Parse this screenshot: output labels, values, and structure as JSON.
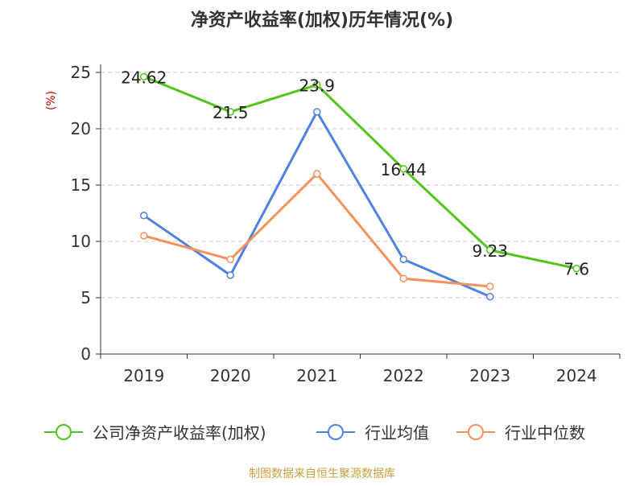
{
  "title": "净资产收益率(加权)历年情况(%)",
  "source": "制图数据来自恒生聚源数据库",
  "colors": {
    "company": "#52c41a",
    "avg": "#4f81e0",
    "median": "#f4925e",
    "grid": "#c8c8c8",
    "axis": "#333333",
    "unit": "#cc0000",
    "source": "#c8a040"
  },
  "chart_data": {
    "type": "line",
    "title": "净资产收益率(加权)历年情况(%)",
    "ylabel": "(%)",
    "ylim": [
      0,
      25
    ],
    "yticks": [
      0,
      5,
      10,
      15,
      20,
      25
    ],
    "grid": true,
    "legend_position": "bottom",
    "categories": [
      "2019",
      "2020",
      "2021",
      "2022",
      "2023",
      "2024"
    ],
    "series": [
      {
        "name": "公司净资产收益率(加权)",
        "color": "#52c41a",
        "values": [
          24.62,
          21.5,
          23.9,
          16.44,
          9.23,
          7.6
        ],
        "labels": [
          "24.62",
          "21.5",
          "23.9",
          "16.44",
          "9.23",
          "7.6"
        ]
      },
      {
        "name": "行业均值",
        "color": "#4f81e0",
        "values": [
          12.3,
          7.0,
          21.5,
          8.4,
          5.1,
          null
        ]
      },
      {
        "name": "行业中位数",
        "color": "#f4925e",
        "values": [
          10.5,
          8.4,
          16.0,
          6.7,
          6.0,
          null
        ]
      }
    ]
  }
}
